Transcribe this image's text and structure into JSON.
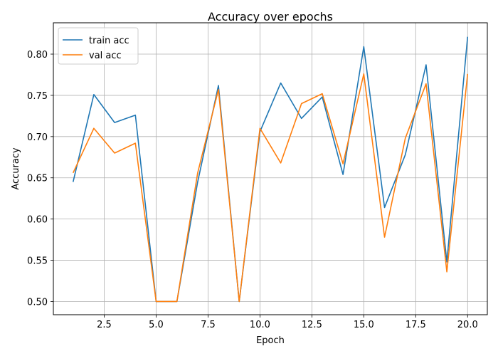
{
  "chart_data": {
    "type": "line",
    "title": "Accuracy over epochs",
    "xlabel": "Epoch",
    "ylabel": "Accuracy",
    "xlim": [
      0.05,
      20.95
    ],
    "ylim": [
      0.484,
      0.838
    ],
    "xticks": [
      2.5,
      5.0,
      7.5,
      10.0,
      12.5,
      15.0,
      17.5,
      20.0
    ],
    "xtick_labels": [
      "2.5",
      "5.0",
      "7.5",
      "10.0",
      "12.5",
      "15.0",
      "17.5",
      "20.0"
    ],
    "yticks": [
      0.5,
      0.55,
      0.6,
      0.65,
      0.7,
      0.75,
      0.8
    ],
    "ytick_labels": [
      "0.50",
      "0.55",
      "0.60",
      "0.65",
      "0.70",
      "0.75",
      "0.80"
    ],
    "grid": true,
    "legend": "upper-left",
    "x": [
      1,
      2,
      3,
      4,
      5,
      6,
      7,
      8,
      9,
      10,
      11,
      12,
      13,
      14,
      15,
      16,
      17,
      18,
      19,
      20
    ],
    "series": [
      {
        "name": "train acc",
        "color": "#1f77b4",
        "values": [
          0.645,
          0.751,
          0.717,
          0.726,
          0.5,
          0.5,
          0.645,
          0.762,
          0.5,
          0.706,
          0.765,
          0.722,
          0.748,
          0.654,
          0.809,
          0.614,
          0.678,
          0.787,
          0.548,
          0.821
        ]
      },
      {
        "name": "val acc",
        "color": "#ff7f0e",
        "values": [
          0.656,
          0.71,
          0.68,
          0.692,
          0.5,
          0.5,
          0.656,
          0.757,
          0.5,
          0.71,
          0.668,
          0.74,
          0.752,
          0.667,
          0.776,
          0.578,
          0.698,
          0.764,
          0.536,
          0.776
        ]
      }
    ]
  }
}
